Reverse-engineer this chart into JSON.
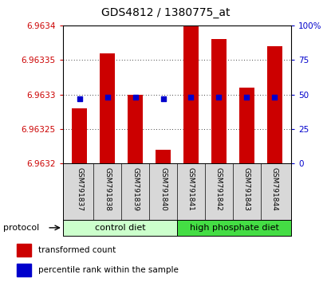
{
  "title": "GDS4812 / 1380775_at",
  "samples": [
    "GSM791837",
    "GSM791838",
    "GSM791839",
    "GSM791840",
    "GSM791841",
    "GSM791842",
    "GSM791843",
    "GSM791844"
  ],
  "transformed_counts": [
    6.96328,
    6.96336,
    6.9633,
    6.96322,
    6.9634,
    6.96338,
    6.96331,
    6.96337
  ],
  "percentile_ranks": [
    47,
    48,
    48,
    47,
    48,
    48,
    48,
    48
  ],
  "ylim": [
    6.9632,
    6.9634
  ],
  "yticks": [
    6.9632,
    6.96325,
    6.9633,
    6.96335,
    6.9634
  ],
  "ytick_labels": [
    "6.9632",
    "6.96325",
    "6.9633",
    "6.96335",
    "6.9634"
  ],
  "right_ylim": [
    0,
    100
  ],
  "right_yticks": [
    0,
    25,
    50,
    75,
    100
  ],
  "right_ytick_labels": [
    "0",
    "25",
    "50",
    "75",
    "100%"
  ],
  "bar_color": "#cc0000",
  "dot_color": "#0000cc",
  "bar_width": 0.55,
  "control_diet_color": "#ccffcc",
  "high_phosphate_color": "#44dd44",
  "protocol_label": "protocol",
  "background_color": "#ffffff",
  "left_tick_color": "#cc0000",
  "right_tick_color": "#0000cc",
  "title_fontsize": 10,
  "tick_fontsize": 7.5,
  "sample_fontsize": 6.5,
  "group_fontsize": 8,
  "legend_red_label": "transformed count",
  "legend_blue_label": "percentile rank within the sample"
}
